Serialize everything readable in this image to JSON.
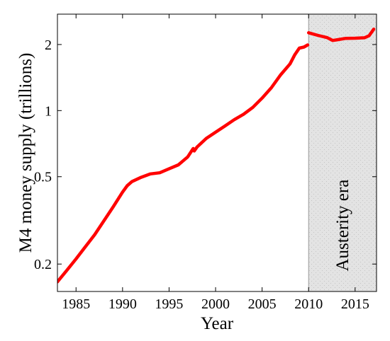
{
  "chart_data": {
    "type": "line",
    "title": "",
    "xlabel": "Year",
    "ylabel": "M4 money supply (trillions)",
    "y_scale": "log",
    "xlim": [
      1983,
      2017.3
    ],
    "ylim": [
      0.15,
      2.75
    ],
    "grid": false,
    "legend": "none",
    "x_ticks": [
      1985,
      1990,
      1995,
      2000,
      2005,
      2010,
      2015
    ],
    "x_tick_labels": [
      "1985",
      "1990",
      "1995",
      "2000",
      "2005",
      "2010",
      "2015"
    ],
    "y_ticks": [
      0.2,
      0.5,
      1,
      2
    ],
    "y_tick_labels": [
      "0.2",
      "0.5",
      "1",
      "2"
    ],
    "shaded_regions": [
      {
        "label": "Austerity era",
        "x_start": 2010.0,
        "x_end": 2017.3,
        "color": "#e3e3e3"
      }
    ],
    "series": [
      {
        "color": "#ff0000",
        "x": [
          1983.0,
          1984.0,
          1985.0,
          1986.0,
          1987.0,
          1988.0,
          1989.0,
          1990.0,
          1990.5,
          1991.0,
          1992.0,
          1993.0,
          1994.0,
          1995.0,
          1996.0,
          1997.0,
          1997.6,
          1997.7,
          1998.0,
          1999.0,
          2000.0,
          2001.0,
          2002.0,
          2003.0,
          2004.0,
          2005.0,
          2006.0,
          2007.0,
          2008.0,
          2008.5,
          2009.0,
          2009.5,
          2009.9
        ],
        "y": [
          0.166,
          0.187,
          0.211,
          0.24,
          0.272,
          0.315,
          0.365,
          0.425,
          0.455,
          0.475,
          0.497,
          0.515,
          0.521,
          0.543,
          0.566,
          0.615,
          0.672,
          0.655,
          0.682,
          0.747,
          0.797,
          0.851,
          0.909,
          0.962,
          1.034,
          1.14,
          1.271,
          1.457,
          1.632,
          1.791,
          1.926,
          1.947,
          1.991
        ]
      },
      {
        "color": "#ff0000",
        "x": [
          2010.0,
          2011.0,
          2012.0,
          2012.6,
          2013.0,
          2014.0,
          2015.0,
          2016.0,
          2016.5,
          2017.0
        ],
        "y": [
          2.262,
          2.201,
          2.15,
          2.086,
          2.099,
          2.133,
          2.137,
          2.147,
          2.193,
          2.349
        ]
      }
    ]
  }
}
